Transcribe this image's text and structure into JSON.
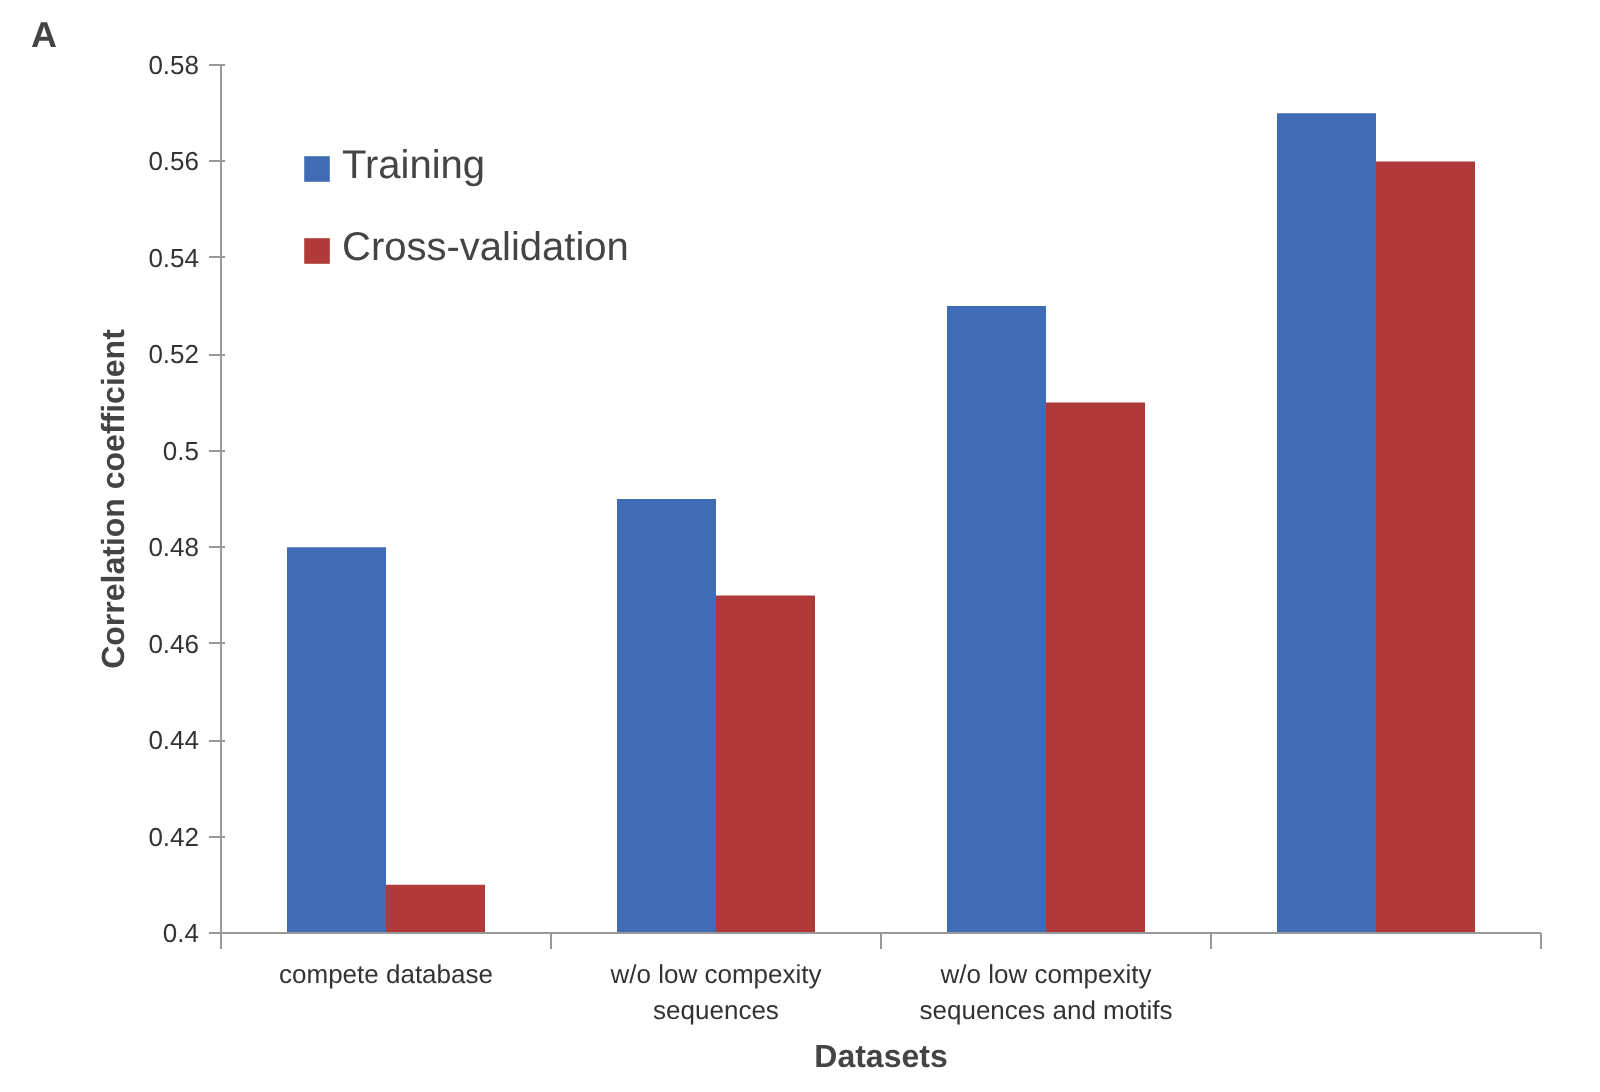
{
  "chart_data": {
    "type": "bar",
    "categories": [
      "compete database",
      "w/o low compexity sequences",
      "w/o low compexity sequences and motifs",
      null
    ],
    "series": [
      {
        "name": "Training",
        "color": "#3f6cb4",
        "values": [
          0.48,
          0.49,
          0.53,
          0.57
        ]
      },
      {
        "name": "Cross-validation",
        "color": "#b03a3a",
        "values": [
          0.41,
          0.47,
          0.51,
          0.56
        ]
      }
    ],
    "xlabel": "Datasets",
    "ylabel": "Correlation coefficient",
    "ylim": [
      0.4,
      0.58
    ],
    "yticks": [
      {
        "value": 0.4,
        "label": "0.4"
      },
      0.42,
      0.44,
      0.46,
      0.48,
      {
        "value": 0.5,
        "label": "0.5"
      },
      0.52,
      0.54,
      0.56,
      0.58
    ],
    "grid": false,
    "legend": "top left",
    "annotations": [
      "A"
    ]
  }
}
